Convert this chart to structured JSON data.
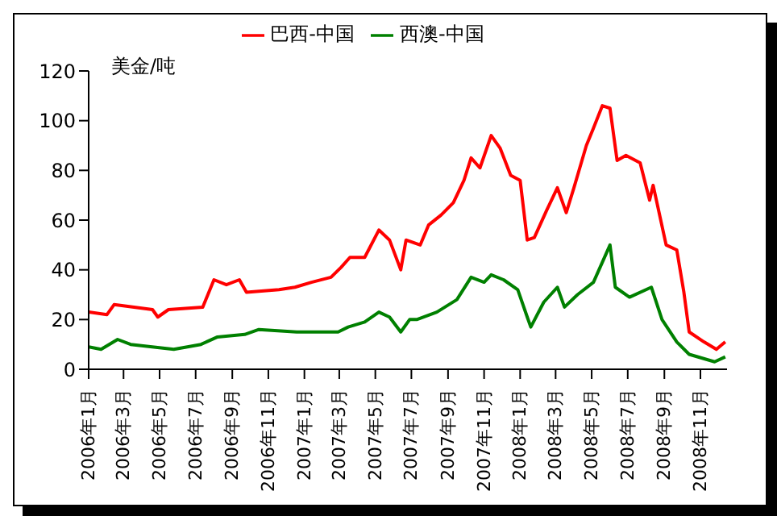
{
  "chart_data": {
    "type": "line",
    "ylabel": "美金/吨",
    "legend": "top",
    "grid": false,
    "marker": "none",
    "line_style": "solid",
    "xlim": [
      "2006-01-01",
      "2008-12-16"
    ],
    "ylim": [
      0,
      120
    ],
    "yticks": [
      0,
      20,
      40,
      60,
      80,
      100,
      120
    ],
    "xticks": [
      {
        "value": "2006-01",
        "label": "2006年1月"
      },
      {
        "value": "2006-03",
        "label": "2006年3月"
      },
      {
        "value": "2006-05",
        "label": "2006年5月"
      },
      {
        "value": "2006-07",
        "label": "2006年7月"
      },
      {
        "value": "2006-09",
        "label": "2006年9月"
      },
      {
        "value": "2006-11",
        "label": "2006年11月"
      },
      {
        "value": "2007-01",
        "label": "2007年1月"
      },
      {
        "value": "2007-03",
        "label": "2007年3月"
      },
      {
        "value": "2007-05",
        "label": "2007年5月"
      },
      {
        "value": "2007-07",
        "label": "2007年7月"
      },
      {
        "value": "2007-09",
        "label": "2007年9月"
      },
      {
        "value": "2007-11",
        "label": "2007年11月"
      },
      {
        "value": "2008-01",
        "label": "2008年1月"
      },
      {
        "value": "2008-03",
        "label": "2008年3月"
      },
      {
        "value": "2008-05",
        "label": "2008年5月"
      },
      {
        "value": "2008-07",
        "label": "2008年7月"
      },
      {
        "value": "2008-09",
        "label": "2008年9月"
      },
      {
        "value": "2008-11",
        "label": "2008年11月"
      }
    ],
    "series": [
      {
        "name": "巴西-中国",
        "color": "#ff0000",
        "x": [
          "2006-01-01",
          "2006-02-01",
          "2006-02-13",
          "2006-04-19",
          "2006-04-28",
          "2006-05-16",
          "2006-07-13",
          "2006-08-01",
          "2006-08-22",
          "2006-09-13",
          "2006-09-25",
          "2006-11-19",
          "2006-12-16",
          "2007-01-13",
          "2007-02-15",
          "2007-03-04",
          "2007-03-19",
          "2007-04-13",
          "2007-05-07",
          "2007-05-25",
          "2007-06-13",
          "2007-06-22",
          "2007-07-16",
          "2007-07-30",
          "2007-08-20",
          "2007-09-10",
          "2007-09-28",
          "2007-10-10",
          "2007-10-25",
          "2007-11-13",
          "2007-11-28",
          "2007-12-16",
          "2008-01-01",
          "2008-01-13",
          "2008-01-25",
          "2008-02-15",
          "2008-03-04",
          "2008-03-19",
          "2008-04-01",
          "2008-04-22",
          "2008-05-04",
          "2008-05-19",
          "2008-06-01",
          "2008-06-13",
          "2008-06-28",
          "2008-07-22",
          "2008-08-07",
          "2008-08-13",
          "2008-09-04",
          "2008-09-22",
          "2008-10-04",
          "2008-10-13",
          "2008-11-07",
          "2008-11-28",
          "2008-12-13"
        ],
        "values": [
          23,
          22,
          26,
          24,
          21,
          24,
          25,
          36,
          34,
          36,
          31,
          32,
          33,
          35,
          37,
          41,
          45,
          45,
          56,
          52,
          40,
          52,
          50,
          58,
          62,
          67,
          76,
          85,
          81,
          94,
          89,
          78,
          76,
          52,
          53,
          64,
          73,
          63,
          73,
          90,
          97,
          106,
          105,
          84,
          86,
          83,
          68,
          74,
          50,
          48,
          31,
          15,
          11,
          8,
          11
        ]
      },
      {
        "name": "西澳-中国",
        "color": "#008000",
        "x": [
          "2006-01-01",
          "2006-01-22",
          "2006-02-19",
          "2006-03-13",
          "2006-05-25",
          "2006-07-10",
          "2006-08-07",
          "2006-09-22",
          "2006-10-16",
          "2006-12-19",
          "2007-02-27",
          "2007-03-16",
          "2007-04-13",
          "2007-05-07",
          "2007-05-25",
          "2007-06-13",
          "2007-06-28",
          "2007-07-10",
          "2007-08-13",
          "2007-09-16",
          "2007-10-10",
          "2007-11-01",
          "2007-11-13",
          "2007-12-04",
          "2007-12-28",
          "2008-01-13",
          "2008-01-19",
          "2008-02-10",
          "2008-03-04",
          "2008-03-16",
          "2008-04-07",
          "2008-05-04",
          "2008-06-01",
          "2008-06-10",
          "2008-07-04",
          "2008-08-10",
          "2008-08-28",
          "2008-09-22",
          "2008-10-13",
          "2008-11-25",
          "2008-12-13"
        ],
        "values": [
          9,
          8,
          12,
          10,
          8,
          10,
          13,
          14,
          16,
          15,
          15,
          17,
          19,
          23,
          21,
          15,
          20,
          20,
          23,
          28,
          37,
          35,
          38,
          36,
          32,
          21,
          17,
          27,
          33,
          25,
          30,
          35,
          50,
          33,
          29,
          33,
          20,
          11,
          6,
          3,
          5
        ]
      }
    ]
  }
}
